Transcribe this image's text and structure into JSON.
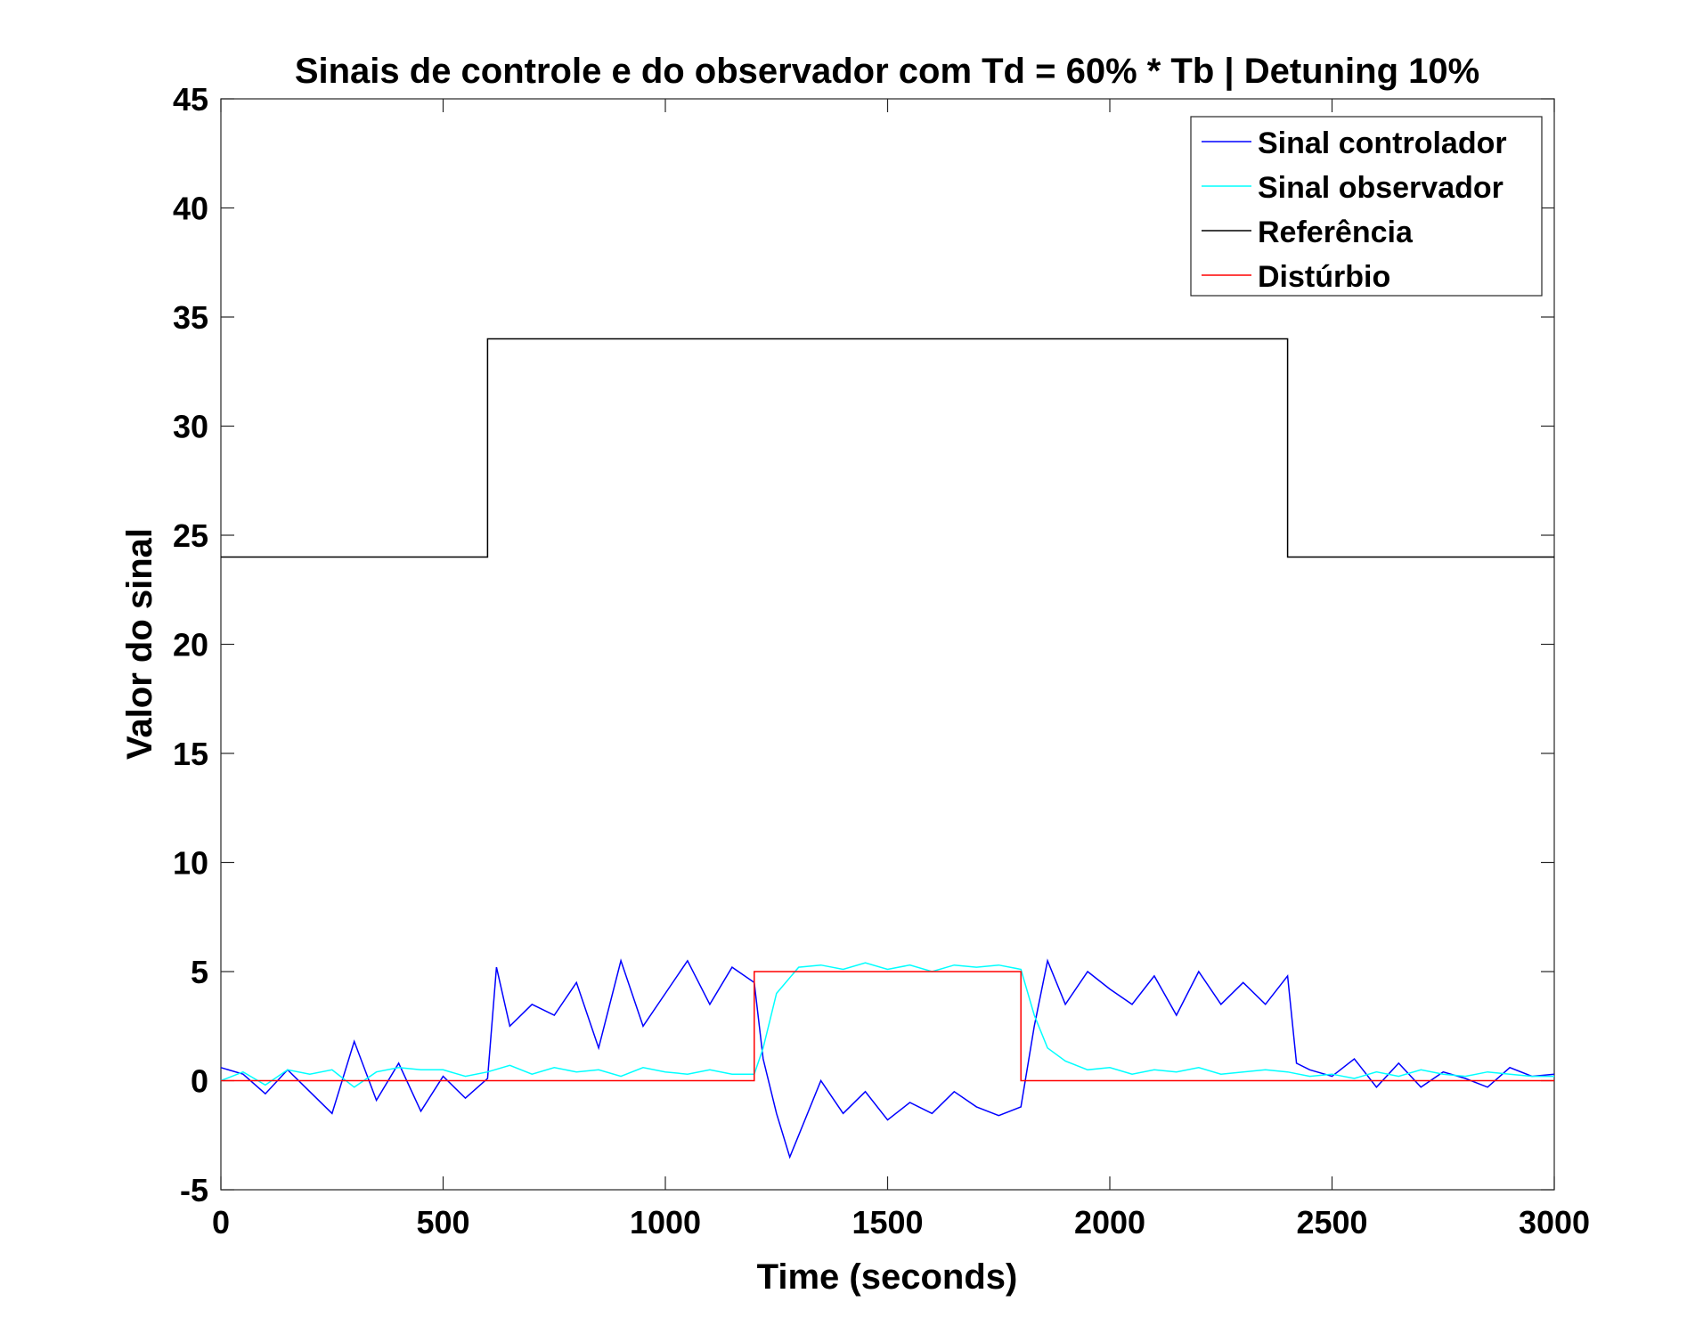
{
  "chart_data": {
    "type": "line",
    "title": "Sinais de controle e do observador com Td = 60% * Tb | Detuning 10%",
    "xlabel": "Time (seconds)",
    "ylabel": "Valor do sinal",
    "xlim": [
      0,
      3000
    ],
    "ylim": [
      -5,
      45
    ],
    "xticks": [
      0,
      500,
      1000,
      1500,
      2000,
      2500,
      3000
    ],
    "yticks": [
      -5,
      0,
      5,
      10,
      15,
      20,
      25,
      30,
      35,
      40,
      45
    ],
    "xtick_labels": [
      "0",
      "500",
      "1000",
      "1500",
      "2000",
      "2500",
      "3000"
    ],
    "ytick_labels": [
      "-5",
      "0",
      "5",
      "10",
      "15",
      "20",
      "25",
      "30",
      "35",
      "40",
      "45"
    ],
    "grid": false,
    "legend_position": "top-right",
    "series": [
      {
        "name": "Sinal controlador",
        "color": "#0000ff",
        "x": [
          0,
          50,
          100,
          150,
          200,
          250,
          300,
          350,
          400,
          450,
          500,
          550,
          600,
          620,
          650,
          700,
          750,
          800,
          850,
          900,
          950,
          1000,
          1050,
          1100,
          1150,
          1200,
          1220,
          1250,
          1280,
          1300,
          1350,
          1400,
          1450,
          1500,
          1550,
          1600,
          1650,
          1700,
          1750,
          1800,
          1830,
          1860,
          1900,
          1950,
          2000,
          2050,
          2100,
          2150,
          2200,
          2250,
          2300,
          2350,
          2400,
          2420,
          2450,
          2500,
          2550,
          2600,
          2650,
          2700,
          2750,
          2800,
          2850,
          2900,
          2950,
          3000
        ],
        "y": [
          0.6,
          0.3,
          -0.6,
          0.5,
          -0.5,
          -1.5,
          1.8,
          -0.9,
          0.8,
          -1.4,
          0.2,
          -0.8,
          0.1,
          5.2,
          2.5,
          3.5,
          3.0,
          4.5,
          1.5,
          5.5,
          2.5,
          4.0,
          5.5,
          3.5,
          5.2,
          4.5,
          1.0,
          -1.5,
          -3.5,
          -2.5,
          0.0,
          -1.5,
          -0.5,
          -1.8,
          -1.0,
          -1.5,
          -0.5,
          -1.2,
          -1.6,
          -1.2,
          2.5,
          5.5,
          3.5,
          5.0,
          4.2,
          3.5,
          4.8,
          3.0,
          5.0,
          3.5,
          4.5,
          3.5,
          4.8,
          0.8,
          0.5,
          0.2,
          1.0,
          -0.3,
          0.8,
          -0.3,
          0.4,
          0.1,
          -0.3,
          0.6,
          0.2,
          0.3
        ]
      },
      {
        "name": "Sinal observador",
        "color": "#00ffff",
        "x": [
          0,
          50,
          100,
          150,
          200,
          250,
          300,
          350,
          400,
          450,
          500,
          550,
          600,
          650,
          700,
          750,
          800,
          850,
          900,
          950,
          1000,
          1050,
          1100,
          1150,
          1200,
          1220,
          1250,
          1300,
          1350,
          1400,
          1450,
          1500,
          1550,
          1600,
          1650,
          1700,
          1750,
          1800,
          1830,
          1860,
          1900,
          1950,
          2000,
          2050,
          2100,
          2150,
          2200,
          2250,
          2300,
          2350,
          2400,
          2450,
          2500,
          2550,
          2600,
          2650,
          2700,
          2750,
          2800,
          2850,
          2900,
          2950,
          3000
        ],
        "y": [
          0.0,
          0.4,
          -0.2,
          0.5,
          0.3,
          0.5,
          -0.3,
          0.4,
          0.6,
          0.5,
          0.5,
          0.2,
          0.4,
          0.7,
          0.3,
          0.6,
          0.4,
          0.5,
          0.2,
          0.6,
          0.4,
          0.3,
          0.5,
          0.3,
          0.3,
          1.5,
          4.0,
          5.2,
          5.3,
          5.1,
          5.4,
          5.1,
          5.3,
          5.0,
          5.3,
          5.2,
          5.3,
          5.1,
          3.0,
          1.5,
          0.9,
          0.5,
          0.6,
          0.3,
          0.5,
          0.4,
          0.6,
          0.3,
          0.4,
          0.5,
          0.4,
          0.2,
          0.3,
          0.1,
          0.4,
          0.2,
          0.5,
          0.3,
          0.2,
          0.4,
          0.3,
          0.2,
          0.2
        ]
      },
      {
        "name": "Referência",
        "color": "#000000",
        "x": [
          0,
          600,
          600,
          2400,
          2400,
          3000
        ],
        "y": [
          24,
          24,
          34,
          34,
          24,
          24
        ]
      },
      {
        "name": "Distúrbio",
        "color": "#ff0000",
        "x": [
          0,
          1200,
          1200,
          1800,
          1800,
          3000
        ],
        "y": [
          0,
          0,
          5,
          5,
          0,
          0
        ]
      }
    ]
  }
}
